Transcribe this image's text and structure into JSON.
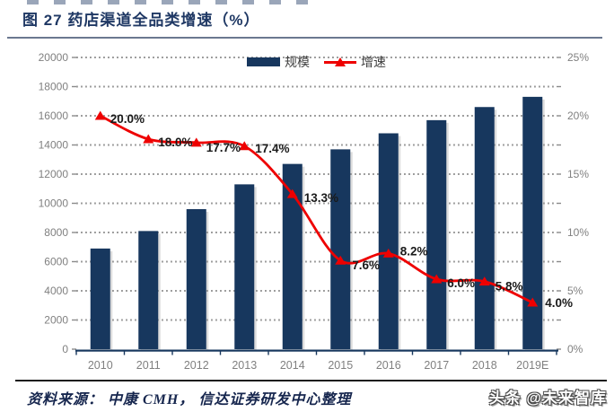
{
  "header": {
    "title": "图 27 药店渠道全品类增速（%）"
  },
  "footer": {
    "source": "资料来源： 中康 CMH， 信达证券研发中心整理",
    "watermark": "头条 @未来智库"
  },
  "chart_data": {
    "type": "combo-bar-line",
    "title": "药店渠道全品类增速（%）",
    "categories": [
      "2010",
      "2011",
      "2012",
      "2013",
      "2014",
      "2015",
      "2016",
      "2017",
      "2018",
      "2019E"
    ],
    "series": [
      {
        "name": "规模",
        "type": "bar",
        "axis": "left",
        "color": "#17375E",
        "values": [
          6900,
          8100,
          9600,
          11300,
          12700,
          13700,
          14800,
          15700,
          16600,
          17300
        ]
      },
      {
        "name": "增速",
        "type": "line",
        "axis": "right",
        "color": "#EE0000",
        "unit": "%",
        "values": [
          20.0,
          18.0,
          17.7,
          17.4,
          13.3,
          7.6,
          8.2,
          6.0,
          5.8,
          4.0
        ],
        "point_labels": [
          "20.0%",
          "18.0%",
          "17.7%",
          "17.4%",
          "13.3%",
          "7.6%",
          "8.2%",
          "6.0%",
          "5.8%",
          "4.0%"
        ]
      }
    ],
    "left_axis": {
      "min": 0,
      "max": 20000,
      "tick_step": 2000,
      "tick_labels": [
        "0",
        "2000",
        "4000",
        "6000",
        "8000",
        "10000",
        "12000",
        "14000",
        "16000",
        "18000",
        "20000"
      ]
    },
    "right_axis": {
      "min": 0,
      "max": 25,
      "minor_tick_pct": 2.5,
      "tick_labels": [
        "0%",
        "5%",
        "10%",
        "15%",
        "20%",
        "25%"
      ]
    },
    "legend": {
      "position": "top",
      "items": [
        {
          "label": "规模",
          "swatch": "bar",
          "color": "#17375E"
        },
        {
          "label": "增速",
          "swatch": "line-triangle",
          "color": "#EE0000"
        }
      ]
    },
    "grid": {
      "horizontal": "dotted",
      "color": "#9a9a9a"
    }
  }
}
